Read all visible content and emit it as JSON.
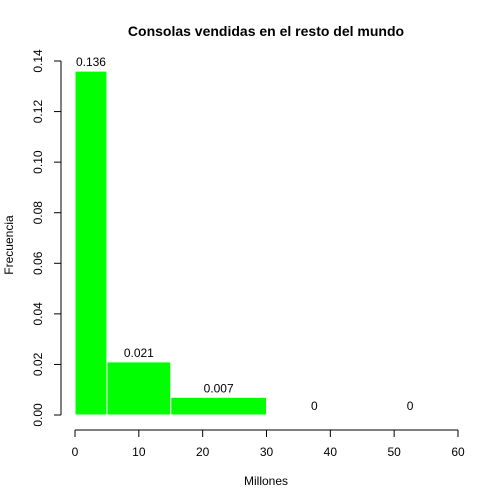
{
  "chart_data": {
    "type": "bar",
    "subtype": "histogram",
    "title": "Consolas vendidas en el resto del mundo",
    "xlabel": "Millones",
    "ylabel": "Frecuencia",
    "xlim": [
      0,
      60
    ],
    "ylim": [
      0,
      0.14
    ],
    "x_ticks": [
      "0",
      "10",
      "20",
      "30",
      "40",
      "50",
      "60"
    ],
    "y_ticks": [
      "0.00",
      "0.02",
      "0.04",
      "0.06",
      "0.08",
      "0.10",
      "0.12",
      "0.14"
    ],
    "bins": [
      {
        "from": 0,
        "to": 5,
        "value": 0.136,
        "label": "0.136"
      },
      {
        "from": 5,
        "to": 15,
        "value": 0.021,
        "label": "0.021"
      },
      {
        "from": 15,
        "to": 30,
        "value": 0.007,
        "label": "0.007"
      },
      {
        "from": 30,
        "to": 45,
        "value": 0,
        "label": "0"
      },
      {
        "from": 45,
        "to": 60,
        "value": 0,
        "label": "0"
      }
    ],
    "bar_color": "#00ff00",
    "bar_border_color": "#ffffff",
    "grid": false
  }
}
